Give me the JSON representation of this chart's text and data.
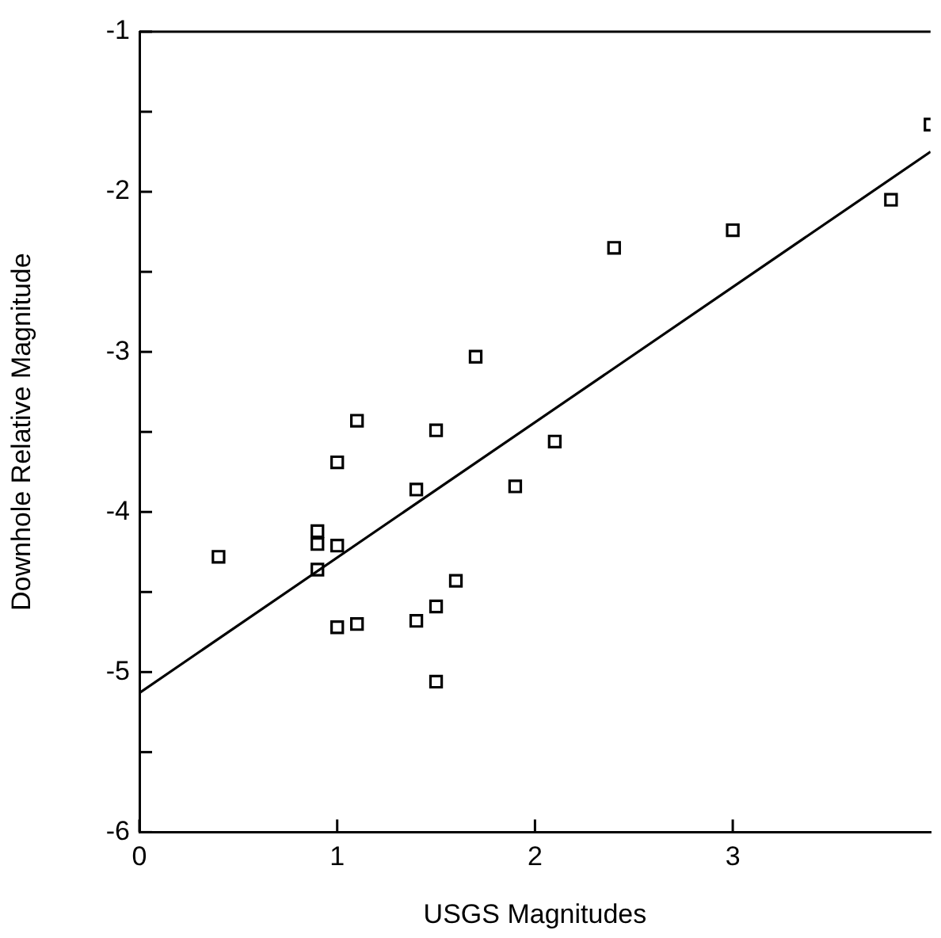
{
  "chart_data": {
    "type": "scatter",
    "xlabel": "USGS Magnitudes",
    "ylabel": "Downhole Relative Magnitude",
    "xlim": [
      0,
      4
    ],
    "ylim": [
      -6,
      -1
    ],
    "xticks": [
      0,
      1,
      2,
      3
    ],
    "yticks": [
      -6,
      {
        "value": -5.5,
        "label": null
      },
      -5,
      {
        "value": -4.5,
        "label": null
      },
      -4,
      {
        "value": -3.5,
        "label": null
      },
      -3,
      {
        "value": -2.5,
        "label": null
      },
      -2,
      {
        "value": -1.5,
        "label": null
      },
      -1
    ],
    "grid": false,
    "legend": false,
    "series": [
      {
        "marker": "square",
        "color": "#000000",
        "x": [
          0.4,
          0.9,
          0.9,
          1.0,
          0.9,
          1.0,
          1.1,
          1.4,
          1.0,
          1.1,
          1.4,
          1.5,
          1.6,
          1.5,
          1.5,
          1.7,
          1.9,
          2.1,
          2.4,
          3.0,
          3.8,
          4.0
        ],
        "values": [
          -4.28,
          -4.12,
          -4.2,
          -4.21,
          -4.36,
          -3.69,
          -3.43,
          -3.86,
          -4.72,
          -4.7,
          -4.68,
          -4.59,
          -4.43,
          -5.06,
          -3.49,
          -3.03,
          -3.84,
          -3.56,
          -2.35,
          -2.24,
          -2.05,
          -1.58
        ]
      },
      {
        "type": "line",
        "marker": "none",
        "color": "#000000",
        "x": [
          0,
          4
        ],
        "values": [
          -5.13,
          -1.75
        ]
      }
    ]
  }
}
